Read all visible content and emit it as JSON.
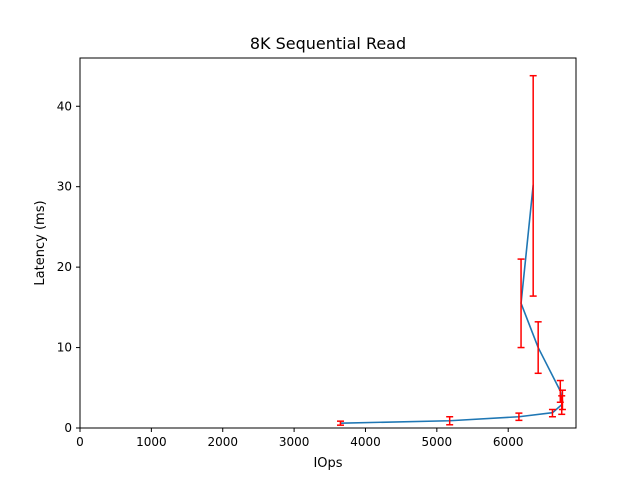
{
  "chart_data": {
    "type": "line",
    "title": "8K  Sequential Read",
    "xlabel": "IOps",
    "ylabel": "Latency (ms)",
    "xlim": [
      0,
      6950
    ],
    "ylim": [
      0,
      46
    ],
    "xticks": [
      0,
      1000,
      2000,
      3000,
      4000,
      5000,
      6000
    ],
    "yticks": [
      0,
      10,
      20,
      30,
      40
    ],
    "grid": false,
    "legend": "none",
    "series": [
      {
        "x": [
          3650,
          5180,
          6150,
          6620,
          6750,
          6760,
          6730,
          6420,
          6180,
          6350
        ],
        "y": [
          0.6,
          0.9,
          1.4,
          1.9,
          2.9,
          3.4,
          4.6,
          10.0,
          15.5,
          30.2
        ],
        "yerr_low": [
          0.25,
          0.5,
          0.45,
          0.5,
          1.2,
          1.1,
          1.4,
          3.2,
          5.5,
          13.8
        ],
        "yerr_high": [
          0.25,
          0.5,
          0.45,
          0.4,
          1.1,
          1.3,
          1.3,
          3.2,
          5.5,
          13.6
        ],
        "line_color": "#1f77b4",
        "errorbar_color": "#ff0000"
      }
    ]
  }
}
